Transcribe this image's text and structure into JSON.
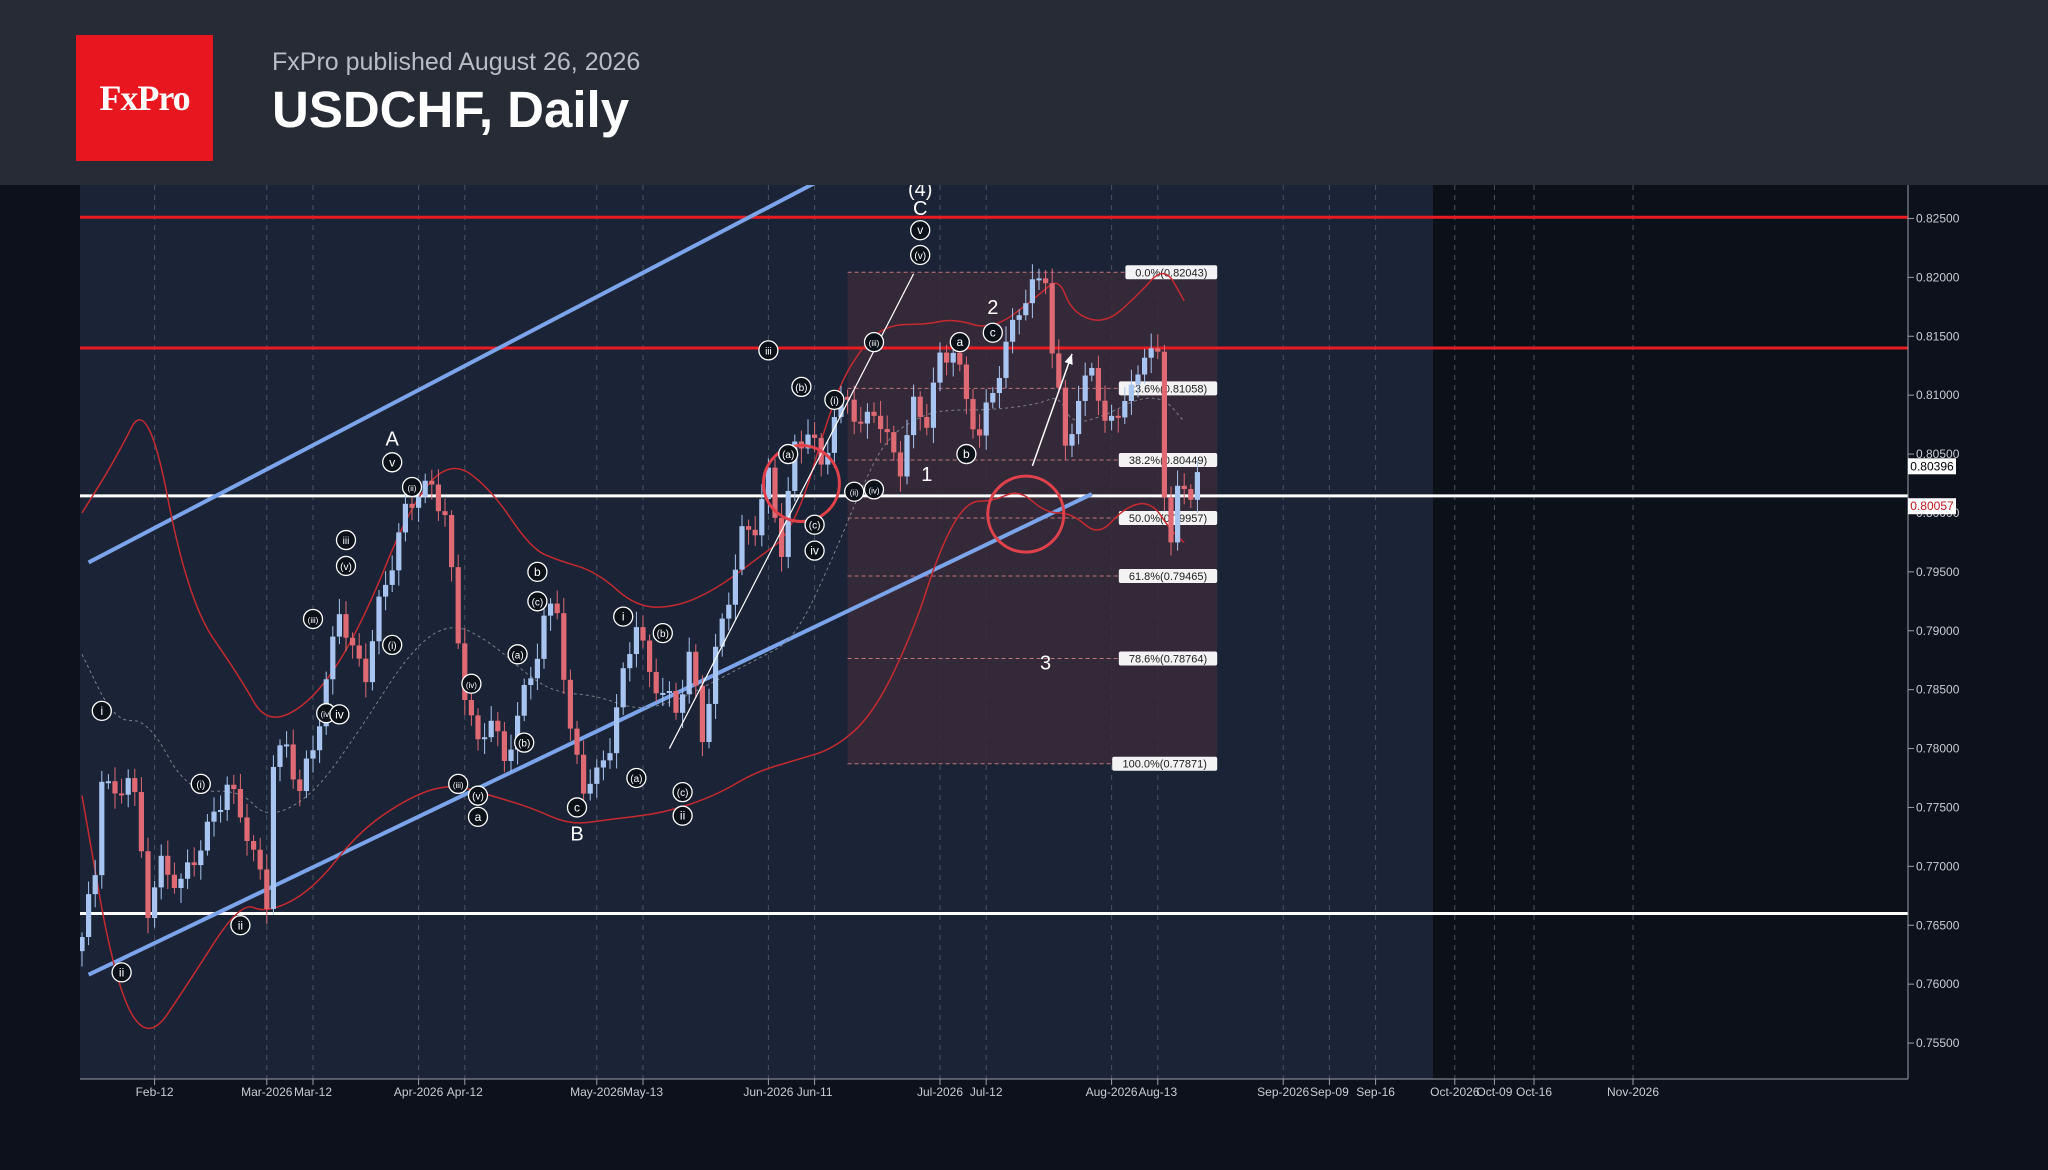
{
  "header": {
    "logo_text": "FxPro",
    "published": "FxPro published August 26, 2026",
    "title": "USDCHF, Daily"
  },
  "chart_data": {
    "type": "candlestick",
    "symbol": "USDCHF",
    "timeframe": "Daily",
    "ylim": [
      0.7525,
      0.8275
    ],
    "y_ticks": [
      "0.82500",
      "0.82000",
      "0.81500",
      "0.81000",
      "0.80500",
      "0.80000",
      "0.79500",
      "0.79000",
      "0.78500",
      "0.78000",
      "0.77500",
      "0.77000",
      "0.76500",
      "0.76000",
      "0.75500"
    ],
    "x_ticks": [
      {
        "label": "Feb-12",
        "day": 11
      },
      {
        "label": "Mar-2026",
        "day": 28
      },
      {
        "label": "Mar-12",
        "day": 35
      },
      {
        "label": "Apr-2026",
        "day": 51
      },
      {
        "label": "Apr-12",
        "day": 58
      },
      {
        "label": "May-2026",
        "day": 78
      },
      {
        "label": "May-13",
        "day": 85
      },
      {
        "label": "Jun-2026",
        "day": 104
      },
      {
        "label": "Jun-11",
        "day": 111
      },
      {
        "label": "Jul-2026",
        "day": 130
      },
      {
        "label": "Jul-12",
        "day": 137
      },
      {
        "label": "Aug-2026",
        "day": 156
      },
      {
        "label": "Aug-13",
        "day": 163
      },
      {
        "label": "Sep-2026",
        "day": 182
      },
      {
        "label": "Sep-09",
        "day": 189
      },
      {
        "label": "Sep-16",
        "day": 196
      },
      {
        "label": "Oct-2026",
        "day": 208
      },
      {
        "label": "Oct-09",
        "day": 214
      },
      {
        "label": "Oct-16",
        "day": 220
      },
      {
        "label": "Nov-2026",
        "day": 235
      }
    ],
    "price_labels": [
      {
        "text": "0.80396",
        "value": 0.80396,
        "color": "#ffffff",
        "text_color": "#000000"
      },
      {
        "text": "0.80057",
        "value": 0.80057,
        "color": "#ffffff",
        "text_color": "#c0151b"
      }
    ],
    "horizontal_levels": [
      {
        "value": 0.8251,
        "color": "#e81b22"
      },
      {
        "value": 0.814,
        "color": "#e81b22"
      },
      {
        "value": 0.80145,
        "color": "#ffffff"
      },
      {
        "value": 0.766,
        "color": "#ffffff"
      }
    ],
    "channel": {
      "color": "#7ca4ea",
      "upper": [
        {
          "day": 1,
          "price": 0.7958
        },
        {
          "day": 125,
          "price": 0.8321
        }
      ],
      "lower": [
        {
          "day": 1,
          "price": 0.7608
        },
        {
          "day": 153,
          "price": 0.8016
        }
      ]
    },
    "fibonacci": {
      "start_day": 116,
      "end_day": 172,
      "high": 0.82043,
      "low": 0.77871,
      "levels": [
        {
          "label": "0.0%(0.82043)",
          "value": 0.82043
        },
        {
          "label": "23.6%(0.81058)",
          "value": 0.81058
        },
        {
          "label": "38.2%(0.80449)",
          "value": 0.80449
        },
        {
          "label": "50.0%(0.79957)",
          "value": 0.79957
        },
        {
          "label": "61.8%(0.79465)",
          "value": 0.79465
        },
        {
          "label": "78.6%(0.78764)",
          "value": 0.78764
        },
        {
          "label": "100.0%(0.77871)",
          "value": 0.77871
        }
      ]
    },
    "candle_anchors": [
      [
        0,
        0.764
      ],
      [
        2,
        0.7695
      ],
      [
        3,
        0.778
      ],
      [
        5,
        0.7755
      ],
      [
        7,
        0.778
      ],
      [
        8,
        0.7755
      ],
      [
        10,
        0.7665
      ],
      [
        12,
        0.77
      ],
      [
        15,
        0.7685
      ],
      [
        19,
        0.773
      ],
      [
        22,
        0.777
      ],
      [
        25,
        0.773
      ],
      [
        28,
        0.767
      ],
      [
        29,
        0.779
      ],
      [
        31,
        0.78
      ],
      [
        33,
        0.7765
      ],
      [
        35,
        0.78
      ],
      [
        37,
        0.7855
      ],
      [
        39,
        0.792
      ],
      [
        41,
        0.788
      ],
      [
        43,
        0.7865
      ],
      [
        45,
        0.792
      ],
      [
        47,
        0.796
      ],
      [
        49,
        0.8
      ],
      [
        51,
        0.802
      ],
      [
        53,
        0.802
      ],
      [
        55,
        0.8
      ],
      [
        57,
        0.789
      ],
      [
        58,
        0.785
      ],
      [
        60,
        0.78
      ],
      [
        62,
        0.783
      ],
      [
        64,
        0.7785
      ],
      [
        66,
        0.783
      ],
      [
        68,
        0.786
      ],
      [
        70,
        0.791
      ],
      [
        72,
        0.792
      ],
      [
        74,
        0.781
      ],
      [
        76,
        0.777
      ],
      [
        78,
        0.7775
      ],
      [
        80,
        0.7805
      ],
      [
        82,
        0.786
      ],
      [
        84,
        0.791
      ],
      [
        86,
        0.786
      ],
      [
        88,
        0.785
      ],
      [
        90,
        0.783
      ],
      [
        92,
        0.788
      ],
      [
        94,
        0.781
      ],
      [
        96,
        0.788
      ],
      [
        98,
        0.793
      ],
      [
        100,
        0.798
      ],
      [
        102,
        0.799
      ],
      [
        104,
        0.803
      ],
      [
        106,
        0.797
      ],
      [
        108,
        0.8055
      ],
      [
        110,
        0.807
      ],
      [
        112,
        0.804
      ],
      [
        114,
        0.808
      ],
      [
        116,
        0.81
      ],
      [
        118,
        0.807
      ],
      [
        120,
        0.809
      ],
      [
        122,
        0.806
      ],
      [
        124,
        0.804
      ],
      [
        126,
        0.809
      ],
      [
        128,
        0.808
      ],
      [
        130,
        0.813
      ],
      [
        132,
        0.814
      ],
      [
        134,
        0.8095
      ],
      [
        136,
        0.8065
      ],
      [
        138,
        0.8105
      ],
      [
        140,
        0.814
      ],
      [
        142,
        0.8175
      ],
      [
        144,
        0.819
      ],
      [
        146,
        0.8204
      ],
      [
        147,
        0.8135
      ],
      [
        149,
        0.806
      ],
      [
        151,
        0.809
      ],
      [
        153,
        0.813
      ],
      [
        155,
        0.807
      ],
      [
        157,
        0.809
      ],
      [
        159,
        0.81
      ],
      [
        161,
        0.814
      ],
      [
        163,
        0.813
      ],
      [
        164,
        0.802
      ],
      [
        165,
        0.798
      ],
      [
        166,
        0.8015
      ],
      [
        168,
        0.802
      ],
      [
        169,
        0.8035
      ]
    ],
    "bollinger": {
      "color": "#c62a30",
      "upper": [
        [
          0,
          0.8
        ],
        [
          5,
          0.8045
        ],
        [
          10,
          0.81
        ],
        [
          16,
          0.7925
        ],
        [
          24,
          0.786
        ],
        [
          28,
          0.782
        ],
        [
          35,
          0.784
        ],
        [
          42,
          0.79
        ],
        [
          50,
          0.801
        ],
        [
          56,
          0.8045
        ],
        [
          62,
          0.802
        ],
        [
          68,
          0.797
        ],
        [
          72,
          0.796
        ],
        [
          78,
          0.795
        ],
        [
          84,
          0.792
        ],
        [
          90,
          0.792
        ],
        [
          96,
          0.7935
        ],
        [
          102,
          0.796
        ],
        [
          108,
          0.7985
        ],
        [
          114,
          0.81
        ],
        [
          118,
          0.814
        ],
        [
          122,
          0.816
        ],
        [
          128,
          0.816
        ],
        [
          132,
          0.8165
        ],
        [
          138,
          0.8155
        ],
        [
          145,
          0.8185
        ],
        [
          148,
          0.82
        ],
        [
          150,
          0.817
        ],
        [
          155,
          0.816
        ],
        [
          160,
          0.8185
        ],
        [
          164,
          0.821
        ],
        [
          167,
          0.818
        ]
      ],
      "lower": [
        [
          0,
          0.776
        ],
        [
          5,
          0.76
        ],
        [
          10,
          0.755
        ],
        [
          16,
          0.76
        ],
        [
          24,
          0.767
        ],
        [
          28,
          0.766
        ],
        [
          35,
          0.768
        ],
        [
          42,
          0.773
        ],
        [
          50,
          0.776
        ],
        [
          56,
          0.777
        ],
        [
          62,
          0.776
        ],
        [
          68,
          0.775
        ],
        [
          74,
          0.7735
        ],
        [
          80,
          0.774
        ],
        [
          88,
          0.7745
        ],
        [
          96,
          0.776
        ],
        [
          102,
          0.778
        ],
        [
          108,
          0.779
        ],
        [
          114,
          0.78
        ],
        [
          120,
          0.783
        ],
        [
          126,
          0.79
        ],
        [
          130,
          0.797
        ],
        [
          134,
          0.801
        ],
        [
          138,
          0.801
        ],
        [
          142,
          0.802
        ],
        [
          146,
          0.8
        ],
        [
          150,
          0.8
        ],
        [
          154,
          0.798
        ],
        [
          158,
          0.8005
        ],
        [
          162,
          0.801
        ],
        [
          165,
          0.7985
        ],
        [
          167,
          0.7975
        ]
      ]
    },
    "wave_labels": [
      {
        "text": "i",
        "day": 3,
        "price": 0.7832,
        "circled": true
      },
      {
        "text": "ii",
        "day": 6,
        "price": 0.761,
        "circled": true
      },
      {
        "text": "(i)",
        "day": 18,
        "price": 0.777,
        "circled": true
      },
      {
        "text": "ii",
        "day": 24,
        "price": 0.765,
        "circled": true
      },
      {
        "text": "(iii)",
        "day": 35,
        "price": 0.791,
        "circled": true
      },
      {
        "text": "(iv)",
        "day": 37,
        "price": 0.783,
        "circled": true
      },
      {
        "text": "iv",
        "day": 39,
        "price": 0.7829,
        "circled": true
      },
      {
        "text": "iii",
        "day": 40,
        "price": 0.7977,
        "circled": true
      },
      {
        "text": "(v)",
        "day": 40,
        "price": 0.7955,
        "circled": true
      },
      {
        "text": "(i)",
        "day": 47,
        "price": 0.7888,
        "circled": true
      },
      {
        "text": "v",
        "day": 47,
        "price": 0.8043,
        "circled": true
      },
      {
        "text": "A",
        "day": 47,
        "price": 0.8063,
        "circled": false
      },
      {
        "text": "(ii)",
        "day": 50,
        "price": 0.8022,
        "circled": true
      },
      {
        "text": "(iii)",
        "day": 57,
        "price": 0.777,
        "circled": true
      },
      {
        "text": "(iv)",
        "day": 59,
        "price": 0.7855,
        "circled": true
      },
      {
        "text": "(v)",
        "day": 60,
        "price": 0.776,
        "circled": true
      },
      {
        "text": "a",
        "day": 60,
        "price": 0.7742,
        "circled": true
      },
      {
        "text": "(a)",
        "day": 66,
        "price": 0.788,
        "circled": true
      },
      {
        "text": "(b)",
        "day": 67,
        "price": 0.7805,
        "circled": true
      },
      {
        "text": "b",
        "day": 69,
        "price": 0.795,
        "circled": true
      },
      {
        "text": "(c)",
        "day": 69,
        "price": 0.7925,
        "circled": true
      },
      {
        "text": "c",
        "day": 75,
        "price": 0.775,
        "circled": true
      },
      {
        "text": "B",
        "day": 75,
        "price": 0.7728,
        "circled": false
      },
      {
        "text": "i",
        "day": 82,
        "price": 0.7912,
        "circled": true
      },
      {
        "text": "(a)",
        "day": 84,
        "price": 0.7775,
        "circled": true
      },
      {
        "text": "(b)",
        "day": 88,
        "price": 0.7898,
        "circled": true
      },
      {
        "text": "(c)",
        "day": 91,
        "price": 0.7763,
        "circled": true
      },
      {
        "text": "ii",
        "day": 91,
        "price": 0.7743,
        "circled": true
      },
      {
        "text": "iii",
        "day": 104,
        "price": 0.8138,
        "circled": true
      },
      {
        "text": "(a)",
        "day": 107,
        "price": 0.805,
        "circled": true
      },
      {
        "text": "(b)",
        "day": 109,
        "price": 0.8107,
        "circled": true
      },
      {
        "text": "(c)",
        "day": 111,
        "price": 0.799,
        "circled": true
      },
      {
        "text": "iv",
        "day": 111,
        "price": 0.7968,
        "circled": true
      },
      {
        "text": "(i)",
        "day": 114,
        "price": 0.8096,
        "circled": true
      },
      {
        "text": "(ii)",
        "day": 117,
        "price": 0.8018,
        "circled": true
      },
      {
        "text": "(iv)",
        "day": 120,
        "price": 0.802,
        "circled": true
      },
      {
        "text": "(iii)",
        "day": 120,
        "price": 0.8145,
        "circled": true
      },
      {
        "text": "(v)",
        "day": 127,
        "price": 0.8219,
        "circled": true
      },
      {
        "text": "v",
        "day": 127,
        "price": 0.824,
        "circled": true
      },
      {
        "text": "C",
        "day": 127,
        "price": 0.8259,
        "circled": false
      },
      {
        "text": "(4)",
        "day": 127,
        "price": 0.8275,
        "circled": false
      },
      {
        "text": "a",
        "day": 133,
        "price": 0.8145,
        "circled": true
      },
      {
        "text": "b",
        "day": 134,
        "price": 0.805,
        "circled": true
      },
      {
        "text": "c",
        "day": 138,
        "price": 0.8153,
        "circled": true
      },
      {
        "text": "2",
        "day": 138,
        "price": 0.8175,
        "circled": false
      },
      {
        "text": "1",
        "day": 128,
        "price": 0.8033,
        "circled": false
      },
      {
        "text": "3",
        "day": 146,
        "price": 0.7873,
        "circled": false
      }
    ],
    "highlight_circles": [
      {
        "day": 109,
        "price": 0.8025
      },
      {
        "day": 143,
        "price": 0.7999
      }
    ],
    "projection_arrow": {
      "from": {
        "day": 144,
        "price": 0.804
      },
      "to": {
        "day": 150,
        "price": 0.8135
      }
    },
    "trend_line": {
      "from": {
        "day": 89,
        "price": 0.78
      },
      "to": {
        "day": 126,
        "price": 0.8203
      }
    }
  }
}
